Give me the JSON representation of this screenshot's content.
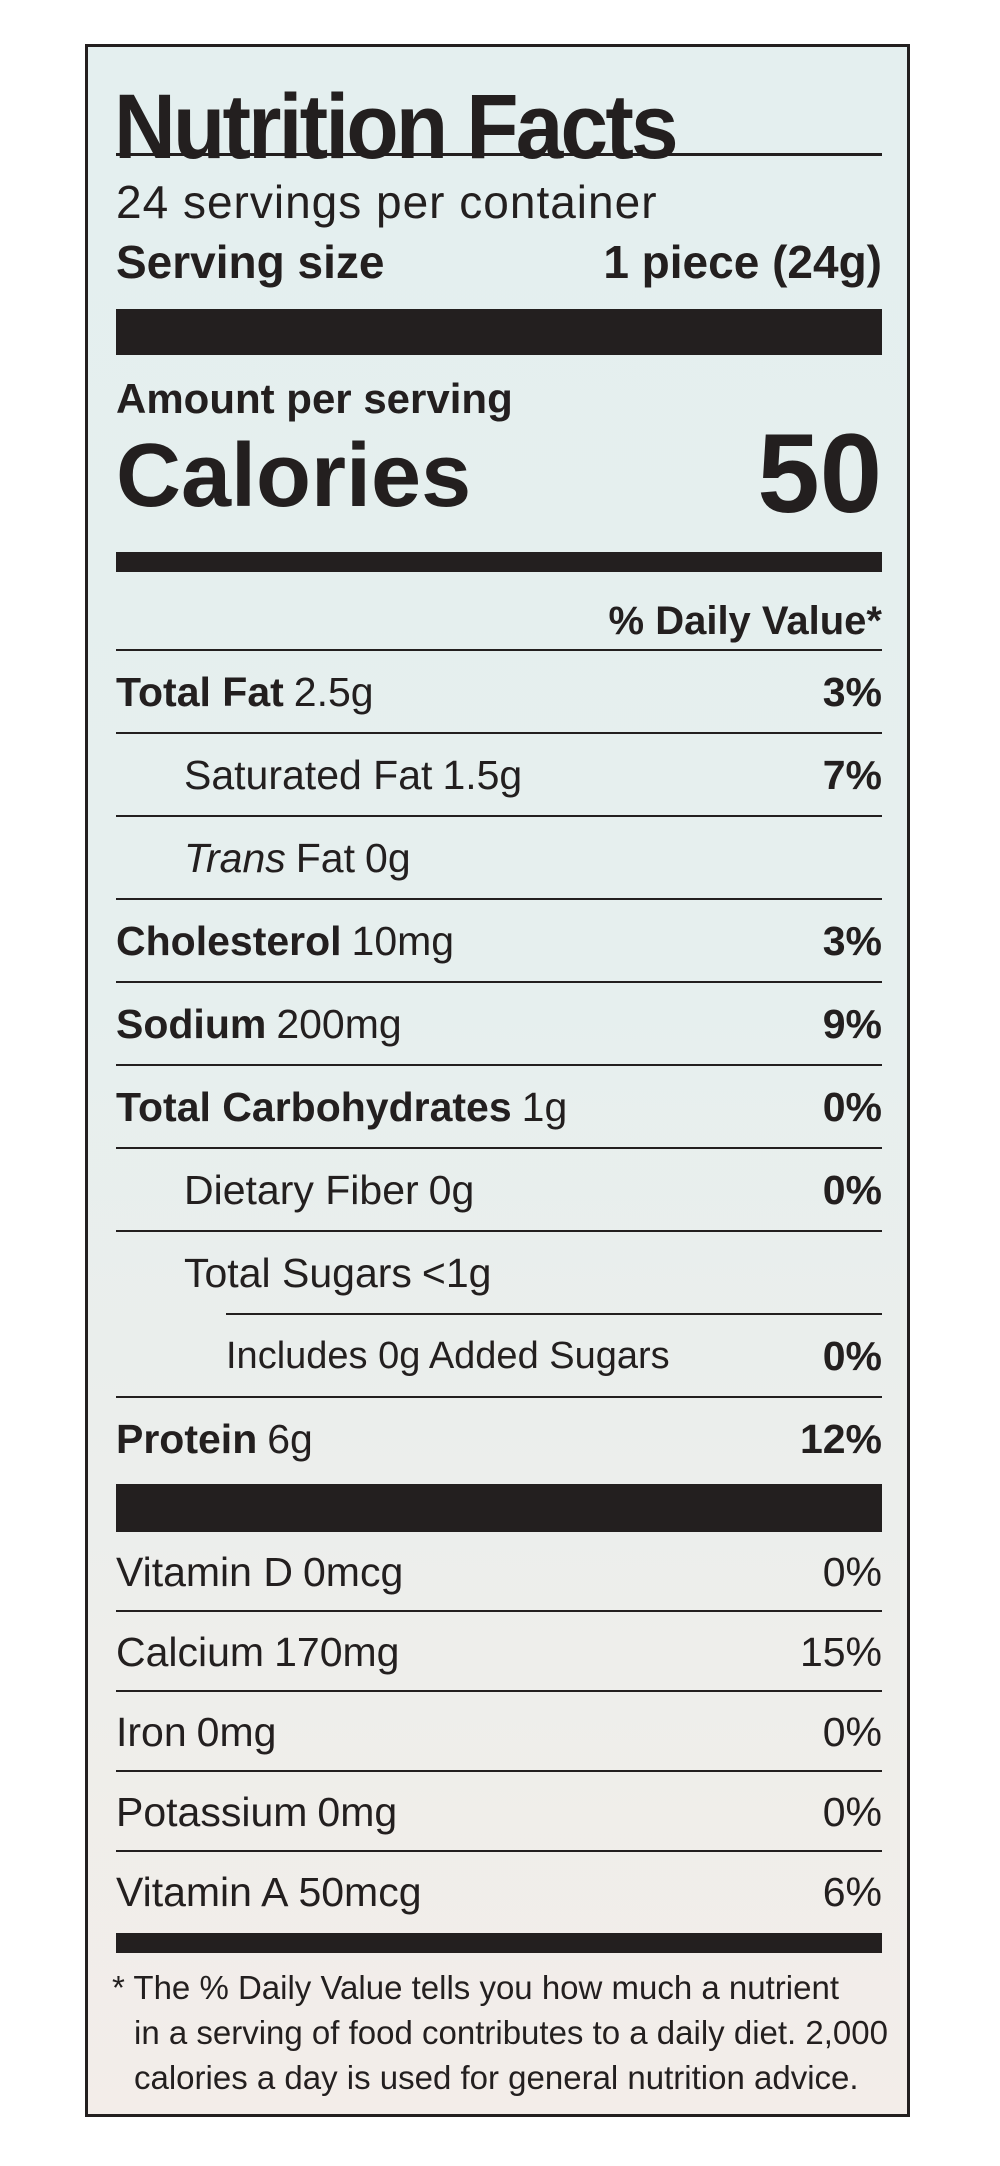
{
  "title": "Nutrition Facts",
  "servings": "24 servings per container",
  "serving_size": {
    "label": "Serving size",
    "value": "1 piece (24g)"
  },
  "amount_per_serving": "Amount per serving",
  "calories": {
    "label": "Calories",
    "value": "50"
  },
  "daily_value_header": "% Daily Value*",
  "nutrients": [
    {
      "name": "Total Fat",
      "amount": "2.5g",
      "dv": "3%"
    },
    {
      "name": "Saturated Fat",
      "amount": "1.5g",
      "dv": "7%"
    },
    {
      "prefix": "Trans",
      "name": "Fat",
      "amount": "0g"
    },
    {
      "name": "Cholesterol",
      "amount": "10mg",
      "dv": "3%"
    },
    {
      "name": "Sodium",
      "amount": "200mg",
      "dv": "9%"
    },
    {
      "name": "Total Carbohydrates",
      "amount": "1g",
      "dv": "0%"
    },
    {
      "name": "Dietary Fiber",
      "amount": "0g",
      "dv": "0%"
    },
    {
      "name": "Total Sugars",
      "amount": "<1g"
    },
    {
      "name": "Includes 0g Added Sugars",
      "dv": "0%"
    },
    {
      "name": "Protein",
      "amount": "6g",
      "dv": "12%"
    }
  ],
  "vitamins": [
    {
      "name": "Vitamin D",
      "amount": "0mcg",
      "dv": "0%"
    },
    {
      "name": "Calcium",
      "amount": "170mg",
      "dv": "15%"
    },
    {
      "name": "Iron",
      "amount": "0mg",
      "dv": "0%"
    },
    {
      "name": "Potassium",
      "amount": "0mg",
      "dv": "0%"
    },
    {
      "name": "Vitamin A",
      "amount": "50mcg",
      "dv": "6%"
    }
  ],
  "footnote": [
    "* The % Daily Value tells you how much a nutrient",
    "in a serving of food contributes to a daily diet. 2,000",
    "calories a day is used for general nutrition advice."
  ]
}
